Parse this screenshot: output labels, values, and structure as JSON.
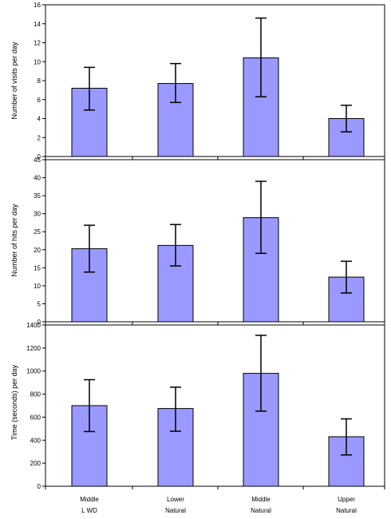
{
  "colors": {
    "bar_fill": "#9999ff",
    "bar_stroke": "#000000",
    "axis": "#000000",
    "error_bar": "#000000"
  },
  "chart_data": [
    {
      "type": "bar",
      "categories": [
        "Middle LWD",
        "Lower Natural",
        "Middle Natural",
        "Upper Natural"
      ],
      "category_lines": [
        [
          "Middle",
          "L WD"
        ],
        [
          "Lower",
          "Natural"
        ],
        [
          "Middle",
          "Natural"
        ],
        [
          "Upper",
          "Natural"
        ]
      ],
      "values": [
        7.2,
        7.7,
        10.4,
        4.0
      ],
      "error_low": [
        4.9,
        5.7,
        6.3,
        2.6
      ],
      "error_high": [
        9.4,
        9.8,
        14.6,
        5.4
      ],
      "ylabel": "Number of visits per day",
      "ylim": [
        0,
        16
      ],
      "yticks": [
        0,
        2,
        4,
        6,
        8,
        10,
        12,
        14,
        16
      ],
      "grid": false
    },
    {
      "type": "bar",
      "categories": [
        "Middle LWD",
        "Lower Natural",
        "Middle Natural",
        "Upper Natural"
      ],
      "values": [
        20.3,
        21.2,
        28.9,
        12.4
      ],
      "error_low": [
        13.8,
        15.5,
        19.0,
        8.0
      ],
      "error_high": [
        26.8,
        27.0,
        39.0,
        16.8
      ],
      "ylabel": "Number of hits per day",
      "ylim": [
        0,
        45
      ],
      "yticks": [
        0,
        5,
        10,
        15,
        20,
        25,
        30,
        35,
        40,
        45
      ],
      "grid": false
    },
    {
      "type": "bar",
      "categories": [
        "Middle LWD",
        "Lower Natural",
        "Middle Natural",
        "Upper Natural"
      ],
      "values": [
        700,
        675,
        980,
        430
      ],
      "error_low": [
        475,
        478,
        652,
        272
      ],
      "error_high": [
        925,
        860,
        1310,
        585
      ],
      "ylabel": "Time (seconds) per day",
      "ylim": [
        0,
        1400
      ],
      "yticks": [
        0,
        200,
        400,
        600,
        800,
        1000,
        1200,
        1400
      ],
      "grid": false
    }
  ]
}
